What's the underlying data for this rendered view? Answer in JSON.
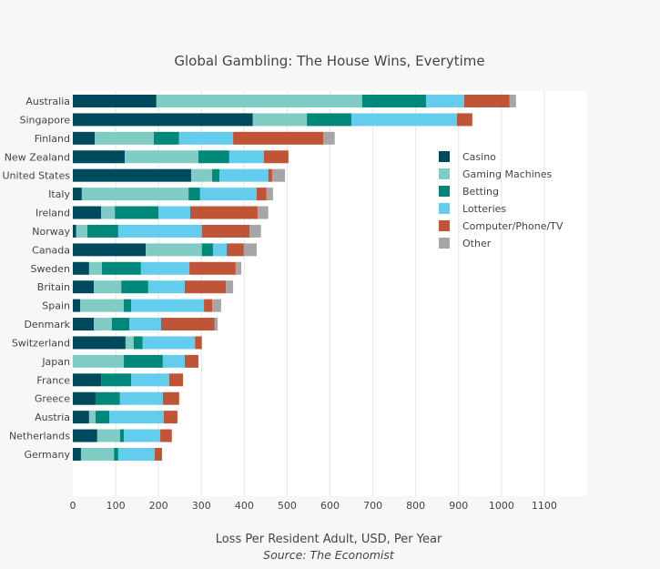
{
  "chart_data": {
    "type": "bar",
    "orientation": "horizontal",
    "stacked": true,
    "title": "Global Gambling: The House Wins, Everytime",
    "xlabel": "Loss Per Resident Adult, USD, Per Year",
    "source": "Source: The Economist",
    "ylabel": "",
    "xlim": [
      0,
      1200
    ],
    "xticks": [
      0,
      100,
      200,
      300,
      400,
      500,
      600,
      700,
      800,
      900,
      1000,
      1100
    ],
    "grid": true,
    "legend_position": "right",
    "categories": [
      "Australia",
      "Singapore",
      "Finland",
      "New Zealand",
      "United States",
      "Italy",
      "Ireland",
      "Norway",
      "Canada",
      "Sweden",
      "Britain",
      "Spain",
      "Denmark",
      "Switzerland",
      "Japan",
      "France",
      "Greece",
      "Austria",
      "Netherlands",
      "Germany"
    ],
    "series": [
      {
        "name": "Casino",
        "color": "#004a5e",
        "values": [
          195,
          420,
          51,
          121,
          276,
          21,
          66,
          8,
          170,
          38,
          49,
          17,
          49,
          123,
          0,
          66,
          53,
          38,
          57,
          19
        ]
      },
      {
        "name": "Gaming Machines",
        "color": "#80cbc4",
        "values": [
          480,
          126,
          138,
          172,
          49,
          249,
          32,
          26,
          131,
          30,
          64,
          102,
          42,
          19,
          119,
          0,
          0,
          15,
          53,
          77
        ]
      },
      {
        "name": "Betting",
        "color": "#00897b",
        "values": [
          149,
          104,
          59,
          72,
          17,
          27,
          102,
          72,
          26,
          91,
          63,
          17,
          41,
          21,
          91,
          70,
          57,
          32,
          9,
          10
        ]
      },
      {
        "name": "Lotteries",
        "color": "#64ccec",
        "values": [
          89,
          246,
          126,
          81,
          114,
          132,
          74,
          195,
          32,
          113,
          85,
          170,
          74,
          122,
          51,
          89,
          100,
          127,
          85,
          85
        ]
      },
      {
        "name": "Computer/Phone/TV",
        "color": "#bf5536",
        "values": [
          106,
          36,
          210,
          57,
          9,
          23,
          157,
          111,
          40,
          108,
          96,
          19,
          125,
          16,
          32,
          32,
          38,
          32,
          27,
          17
        ]
      },
      {
        "name": "Other",
        "color": "#a6a6a6",
        "values": [
          15,
          0,
          27,
          0,
          30,
          15,
          25,
          27,
          30,
          13,
          17,
          21,
          7,
          0,
          0,
          0,
          0,
          0,
          0,
          0
        ]
      }
    ]
  }
}
